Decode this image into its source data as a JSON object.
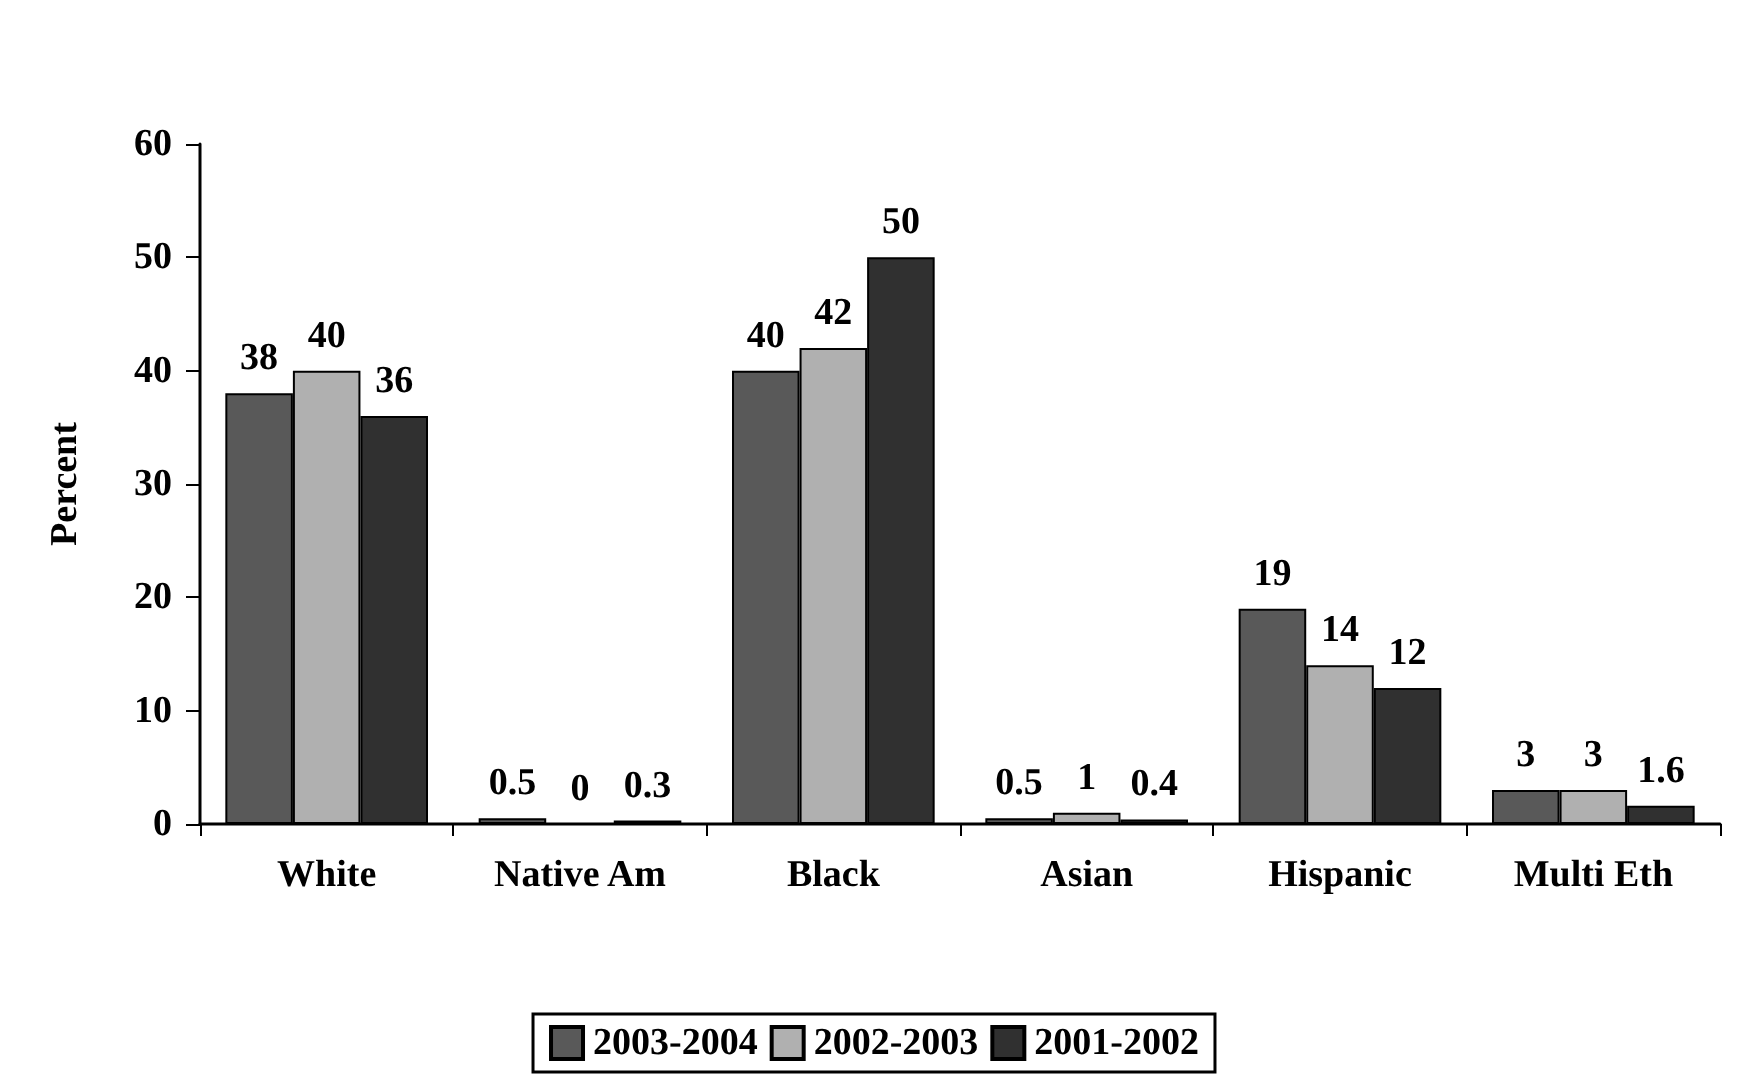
{
  "chart_data": {
    "type": "bar",
    "ylabel": "Percent",
    "categories": [
      "White",
      "Native Am",
      "Black",
      "Asian",
      "Hispanic",
      "Multi Eth"
    ],
    "series": [
      {
        "name": "2003-2004",
        "color": "#595959",
        "values": [
          38,
          0.5,
          40,
          0.5,
          19,
          3
        ]
      },
      {
        "name": "2002-2003",
        "color": "#b0b0b0",
        "values": [
          40,
          0,
          42,
          1,
          14,
          3
        ]
      },
      {
        "name": "2001-2002",
        "color": "#303030",
        "values": [
          36,
          0.3,
          50,
          0.4,
          12,
          1.6
        ]
      }
    ],
    "ylim": [
      0,
      60
    ],
    "yticks": [
      0,
      10,
      20,
      30,
      40,
      50,
      60
    ],
    "grid": false,
    "legend": "bottom",
    "data_labels": true
  }
}
